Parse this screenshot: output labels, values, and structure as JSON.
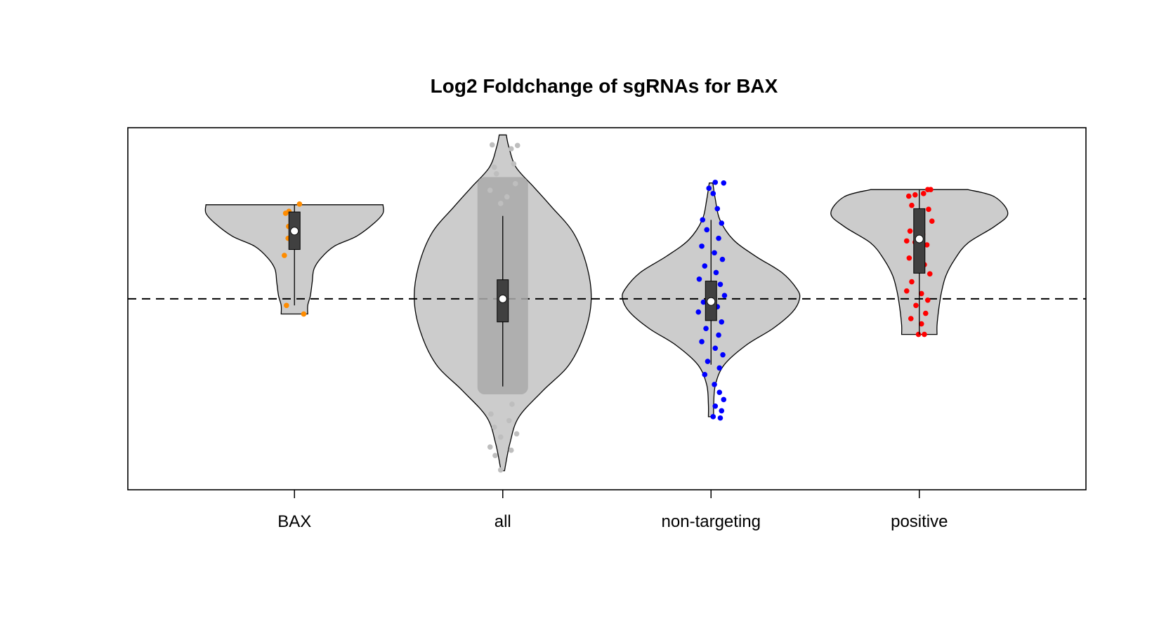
{
  "chart_data": {
    "type": "violin",
    "title": "Log2 Foldchange of sgRNAs for BAX",
    "xlabel": "",
    "ylabel": "",
    "y_axis_shown": false,
    "reference_line": {
      "y": 0,
      "style": "dashed",
      "color": "#000000"
    },
    "ylim": [
      -2.9,
      2.6
    ],
    "categories": [
      "BAX",
      "all",
      "non-targeting",
      "positive"
    ],
    "series": [
      {
        "category": "BAX",
        "point_color": "#ff8c00",
        "violin_range": [
          -0.23,
          1.43
        ],
        "density_profile": [
          [
            1.43,
            1.0
          ],
          [
            1.3,
            1.0
          ],
          [
            1.15,
            0.9
          ],
          [
            0.95,
            0.7
          ],
          [
            0.8,
            0.45
          ],
          [
            0.62,
            0.3
          ],
          [
            0.45,
            0.22
          ],
          [
            0.25,
            0.2
          ],
          [
            0.05,
            0.18
          ],
          [
            -0.1,
            0.15
          ],
          [
            -0.23,
            0.15
          ]
        ],
        "box": {
          "q1": 0.75,
          "median": 1.03,
          "q3": 1.32
        },
        "whisker": [
          -0.1,
          1.43
        ],
        "points": [
          {
            "x": -0.21,
            "y": 1.3
          },
          {
            "x": -0.13,
            "y": 1.33
          },
          {
            "x": -0.08,
            "y": 1.27
          },
          {
            "x": 0.05,
            "y": 1.23
          },
          {
            "x": 0.12,
            "y": 1.44
          },
          {
            "x": -0.14,
            "y": 1.1
          },
          {
            "x": -0.07,
            "y": 1.02
          },
          {
            "x": -0.15,
            "y": 0.92
          },
          {
            "x": -0.05,
            "y": 0.82
          },
          {
            "x": -0.24,
            "y": 0.66
          },
          {
            "x": -0.19,
            "y": -0.1
          },
          {
            "x": 0.22,
            "y": -0.23
          }
        ]
      },
      {
        "category": "all",
        "point_color": "#bebebe",
        "violin_range": [
          -2.61,
          2.49
        ],
        "density_profile": [
          [
            2.49,
            0.04
          ],
          [
            2.3,
            0.07
          ],
          [
            2.0,
            0.15
          ],
          [
            1.7,
            0.35
          ],
          [
            1.4,
            0.55
          ],
          [
            1.0,
            0.8
          ],
          [
            0.5,
            0.95
          ],
          [
            0.0,
            1.0
          ],
          [
            -0.5,
            0.93
          ],
          [
            -1.0,
            0.75
          ],
          [
            -1.4,
            0.45
          ],
          [
            -1.8,
            0.18
          ],
          [
            -2.2,
            0.08
          ],
          [
            -2.61,
            0.02
          ]
        ],
        "box": {
          "q1": -0.35,
          "median": 0.0,
          "q3": 0.29
        },
        "whisker": [
          -1.33,
          1.26
        ],
        "points": [
          {
            "x": -0.25,
            "y": 2.34
          },
          {
            "x": 0.2,
            "y": 2.28
          },
          {
            "x": 0.35,
            "y": 2.33
          },
          {
            "x": -0.2,
            "y": 2.0
          },
          {
            "x": 0.26,
            "y": 2.05
          },
          {
            "x": -0.15,
            "y": 1.9
          },
          {
            "x": 0.3,
            "y": 1.75
          },
          {
            "x": -0.3,
            "y": 1.65
          },
          {
            "x": 0.1,
            "y": 1.55
          },
          {
            "x": -0.05,
            "y": 1.45
          },
          {
            "x": 0.22,
            "y": -1.6
          },
          {
            "x": -0.28,
            "y": -1.75
          },
          {
            "x": 0.15,
            "y": -1.85
          },
          {
            "x": -0.2,
            "y": -1.95
          },
          {
            "x": 0.33,
            "y": -2.05
          },
          {
            "x": -0.05,
            "y": -2.1
          },
          {
            "x": -0.3,
            "y": -2.25
          },
          {
            "x": 0.2,
            "y": -2.3
          },
          {
            "x": -0.18,
            "y": -2.38
          },
          {
            "x": -0.05,
            "y": -2.6
          }
        ]
      },
      {
        "category": "non-targeting",
        "point_color": "#0000ff",
        "violin_range": [
          -1.79,
          1.76
        ],
        "density_profile": [
          [
            1.76,
            0.02
          ],
          [
            1.5,
            0.05
          ],
          [
            1.2,
            0.1
          ],
          [
            0.9,
            0.25
          ],
          [
            0.65,
            0.5
          ],
          [
            0.4,
            0.8
          ],
          [
            0.15,
            0.97
          ],
          [
            0.0,
            1.0
          ],
          [
            -0.2,
            0.92
          ],
          [
            -0.45,
            0.7
          ],
          [
            -0.7,
            0.4
          ],
          [
            -1.0,
            0.15
          ],
          [
            -1.3,
            0.05
          ],
          [
            -1.6,
            0.03
          ],
          [
            -1.79,
            0.03
          ]
        ],
        "box": {
          "q1": -0.33,
          "median": -0.04,
          "q3": 0.27
        },
        "whisker": [
          -1.0,
          1.2
        ],
        "points": [
          {
            "x": -0.05,
            "y": 1.68
          },
          {
            "x": 0.1,
            "y": 1.77
          },
          {
            "x": 0.3,
            "y": 1.76
          },
          {
            "x": 0.05,
            "y": 1.6
          },
          {
            "x": 0.15,
            "y": 1.37
          },
          {
            "x": -0.2,
            "y": 1.2
          },
          {
            "x": 0.25,
            "y": 1.15
          },
          {
            "x": -0.1,
            "y": 1.05
          },
          {
            "x": 0.18,
            "y": 0.92
          },
          {
            "x": -0.22,
            "y": 0.8
          },
          {
            "x": 0.08,
            "y": 0.7
          },
          {
            "x": 0.27,
            "y": 0.6
          },
          {
            "x": -0.15,
            "y": 0.5
          },
          {
            "x": 0.12,
            "y": 0.4
          },
          {
            "x": -0.28,
            "y": 0.3
          },
          {
            "x": 0.22,
            "y": 0.22
          },
          {
            "x": -0.05,
            "y": 0.15
          },
          {
            "x": 0.32,
            "y": 0.05
          },
          {
            "x": -0.18,
            "y": -0.05
          },
          {
            "x": 0.15,
            "y": -0.12
          },
          {
            "x": -0.3,
            "y": -0.2
          },
          {
            "x": 0.05,
            "y": -0.28
          },
          {
            "x": 0.25,
            "y": -0.35
          },
          {
            "x": -0.12,
            "y": -0.45
          },
          {
            "x": 0.18,
            "y": -0.55
          },
          {
            "x": -0.22,
            "y": -0.65
          },
          {
            "x": 0.1,
            "y": -0.75
          },
          {
            "x": 0.28,
            "y": -0.85
          },
          {
            "x": -0.08,
            "y": -0.95
          },
          {
            "x": 0.2,
            "y": -1.05
          },
          {
            "x": -0.15,
            "y": -1.15
          },
          {
            "x": 0.08,
            "y": -1.3
          },
          {
            "x": 0.2,
            "y": -1.42
          },
          {
            "x": 0.3,
            "y": -1.53
          },
          {
            "x": 0.1,
            "y": -1.63
          },
          {
            "x": 0.25,
            "y": -1.7
          },
          {
            "x": 0.05,
            "y": -1.79
          },
          {
            "x": 0.22,
            "y": -1.81
          }
        ]
      },
      {
        "category": "positive",
        "point_color": "#ff0000",
        "violin_range": [
          -0.54,
          1.66
        ],
        "density_profile": [
          [
            1.66,
            0.55
          ],
          [
            1.55,
            0.85
          ],
          [
            1.3,
            1.0
          ],
          [
            1.1,
            0.85
          ],
          [
            0.85,
            0.55
          ],
          [
            0.6,
            0.4
          ],
          [
            0.35,
            0.3
          ],
          [
            0.1,
            0.25
          ],
          [
            -0.15,
            0.22
          ],
          [
            -0.4,
            0.2
          ],
          [
            -0.54,
            0.2
          ]
        ],
        "box": {
          "q1": 0.39,
          "median": 0.91,
          "q3": 1.37
        },
        "whisker": [
          -0.54,
          1.66
        ],
        "points": [
          {
            "x": -0.25,
            "y": 1.56
          },
          {
            "x": -0.1,
            "y": 1.58
          },
          {
            "x": 0.1,
            "y": 1.6
          },
          {
            "x": 0.2,
            "y": 1.66
          },
          {
            "x": 0.27,
            "y": 1.66
          },
          {
            "x": -0.18,
            "y": 1.42
          },
          {
            "x": 0.22,
            "y": 1.36
          },
          {
            "x": 0.05,
            "y": 1.26
          },
          {
            "x": 0.3,
            "y": 1.18
          },
          {
            "x": -0.22,
            "y": 1.03
          },
          {
            "x": 0.08,
            "y": 0.98
          },
          {
            "x": -0.3,
            "y": 0.88
          },
          {
            "x": -0.1,
            "y": 0.86
          },
          {
            "x": 0.18,
            "y": 0.82
          },
          {
            "x": -0.05,
            "y": 0.72
          },
          {
            "x": -0.24,
            "y": 0.62
          },
          {
            "x": 0.12,
            "y": 0.52
          },
          {
            "x": 0.25,
            "y": 0.38
          },
          {
            "x": -0.18,
            "y": 0.26
          },
          {
            "x": 0.05,
            "y": 0.08
          },
          {
            "x": -0.3,
            "y": 0.12
          },
          {
            "x": 0.2,
            "y": -0.02
          },
          {
            "x": -0.08,
            "y": -0.1
          },
          {
            "x": 0.15,
            "y": -0.22
          },
          {
            "x": -0.2,
            "y": -0.3
          },
          {
            "x": 0.05,
            "y": -0.38
          },
          {
            "x": -0.02,
            "y": -0.54
          },
          {
            "x": 0.12,
            "y": -0.54
          }
        ]
      }
    ],
    "colors": {
      "violin_fill": "#cccccc",
      "box_fill": "#404040",
      "median_marker": "#ffffff",
      "all_point_band": "#a9a9a9"
    },
    "grid": false,
    "legend": "none"
  }
}
